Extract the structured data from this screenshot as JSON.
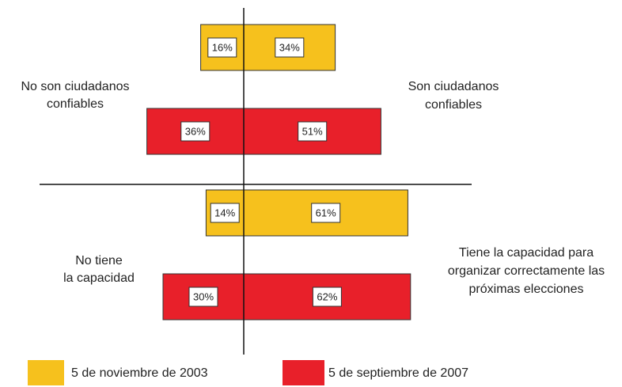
{
  "chart_data": {
    "type": "diverging_bar",
    "groups": [
      {
        "left_label": [
          "No son ciudadanos",
          "confiables"
        ],
        "right_label": [
          "Son ciudadanos",
          "confiables"
        ]
      },
      {
        "left_label": [
          "No tiene",
          "la capacidad"
        ],
        "right_label": [
          "Tiene la capacidad para",
          "organizar correctamente las",
          "próximas elecciones"
        ]
      }
    ],
    "series": [
      {
        "name": "5 de noviembre de 2003",
        "color": "#f6c11d",
        "left": [
          16,
          14
        ],
        "left_value_labels": [
          "16%",
          "14%"
        ],
        "right": [
          34,
          61
        ],
        "right_value_labels": [
          "34%",
          "61%"
        ]
      },
      {
        "name": "5 de septiembre de 2007",
        "color": "#e8202a",
        "left": [
          36,
          30
        ],
        "left_value_labels": [
          "36%",
          "30%"
        ],
        "right": [
          51,
          62
        ],
        "right_value_labels": [
          "51%",
          "62%"
        ]
      }
    ]
  }
}
